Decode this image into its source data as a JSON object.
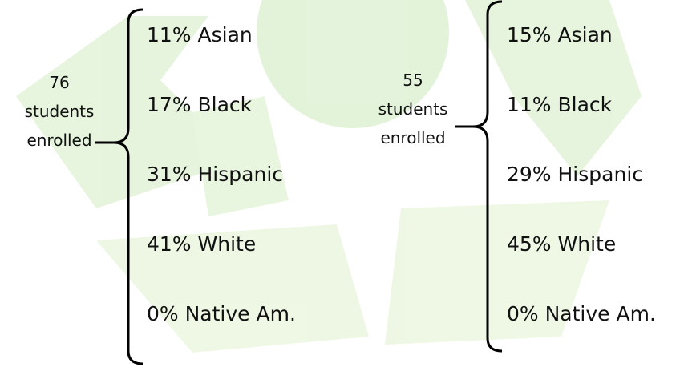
{
  "groups": [
    {
      "count": "76",
      "caption": [
        "students",
        "enrolled"
      ],
      "items": [
        "11% Asian",
        "17% Black",
        "31% Hispanic",
        "41% White",
        "0% Native Am."
      ]
    },
    {
      "count": "55",
      "caption": [
        "students",
        "enrolled"
      ],
      "items": [
        "15% Asian",
        "11% Black",
        "29% Hispanic",
        "45% White",
        "0% Native Am."
      ]
    }
  ]
}
